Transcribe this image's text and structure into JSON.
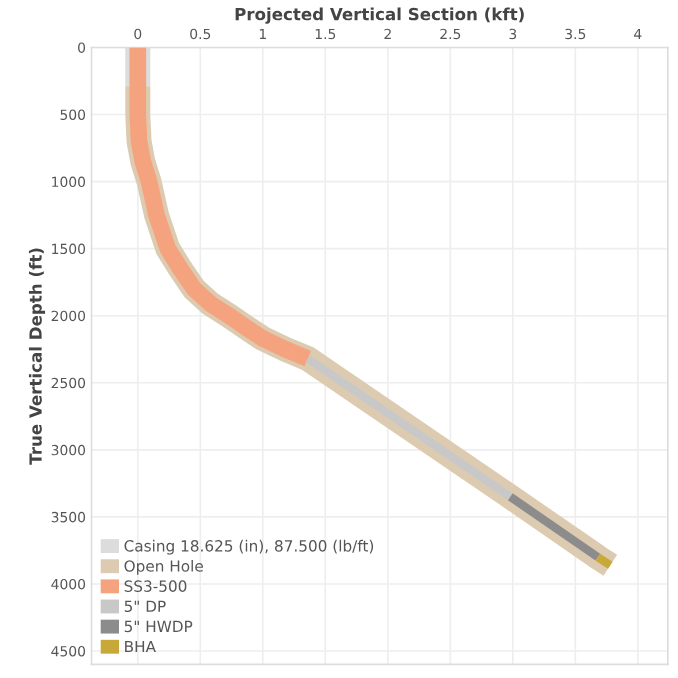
{
  "chart_data": {
    "type": "line",
    "xlabel": "Projected Vertical Section (kft)",
    "ylabel": "True Vertical Depth (ft)",
    "xlim": [
      -0.37,
      4.24
    ],
    "ylim": [
      4600,
      0
    ],
    "xticks": [
      0,
      0.5,
      1,
      1.5,
      2,
      2.5,
      3,
      3.5,
      4
    ],
    "yticks": [
      0,
      500,
      1000,
      1500,
      2000,
      2500,
      3000,
      3500,
      4000,
      4500
    ],
    "grid": true,
    "legend": "bottom left",
    "line_style": "solid",
    "marker": "none",
    "series": [
      {
        "name": "Casing 18.625 (in), 87.500 (lb/ft)",
        "color": "#dcdcdc",
        "x": [
          0,
          0
        ],
        "values": [
          0,
          290
        ]
      },
      {
        "name": "Open Hole",
        "color": "#dccbb0",
        "x": [
          0,
          0,
          0.01,
          0.04,
          0.09,
          0.15,
          0.24,
          0.34,
          0.45,
          0.58,
          0.73,
          0.87,
          1.0,
          1.18,
          1.36,
          2.98,
          3.68,
          3.78
        ],
        "values": [
          290,
          500,
          700,
          850,
          1000,
          1250,
          1500,
          1650,
          1800,
          1910,
          2000,
          2090,
          2170,
          2250,
          2320,
          3350,
          3800,
          3860
        ]
      },
      {
        "name": "SS3-500",
        "color": "#f5a37e",
        "x": [
          0,
          0,
          0.01,
          0.04,
          0.09,
          0.15,
          0.24,
          0.34,
          0.45,
          0.58,
          0.73,
          0.87,
          1.0,
          1.18,
          1.36
        ],
        "values": [
          0,
          500,
          700,
          850,
          1000,
          1250,
          1500,
          1650,
          1800,
          1910,
          2000,
          2090,
          2170,
          2250,
          2320
        ]
      },
      {
        "name": "5\" DP",
        "color": "#c8c8c8",
        "x": [
          1.36,
          2.98
        ],
        "values": [
          2320,
          3350
        ]
      },
      {
        "name": "5\" HWDP",
        "color": "#8c8c8c",
        "x": [
          2.98,
          3.68
        ],
        "values": [
          3350,
          3800
        ]
      },
      {
        "name": "BHA",
        "color": "#c9a83a",
        "x": [
          3.68,
          3.78
        ],
        "values": [
          3800,
          3860
        ]
      }
    ]
  }
}
